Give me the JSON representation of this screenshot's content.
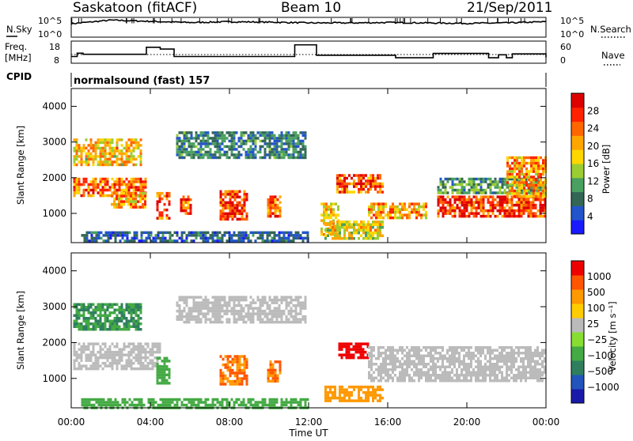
{
  "header": {
    "station": "Saskatoon (fitACF)",
    "beam": "Beam 10",
    "date": "21/Sep/2011"
  },
  "labels": {
    "nsky": "N.Sky",
    "freq_line1": "Freq.",
    "freq_line2": "[MHz]",
    "cpid": "CPID",
    "nsearch": "N.Search",
    "nave": "Nave",
    "cpid_value": "normalsound (fast) 157",
    "xlabel": "Time UT"
  },
  "colors": {
    "power_scale": [
      "#1a1aff",
      "#2255cc",
      "#336655",
      "#4aa060",
      "#9acd32",
      "#ffd700",
      "#ffa500",
      "#ff6600",
      "#ff2200",
      "#dd0000"
    ],
    "velocity_scale": [
      "#1a1aaa",
      "#2255bb",
      "#2f7f5f",
      "#44aa44",
      "#88dd33",
      "#bbbbbb",
      "#ffcc00",
      "#ff9900",
      "#ff5500",
      "#ee0000"
    ]
  },
  "chart_data": [
    {
      "type": "line",
      "title": "N.Sky / N.Search",
      "left_ticks": [
        "10^5",
        "10^0"
      ],
      "right_ticks": [
        "10^5",
        "10^0"
      ],
      "x": [
        "00:00",
        "02:00",
        "04:00",
        "06:00",
        "08:00",
        "10:00",
        "12:00",
        "14:00",
        "16:00",
        "18:00",
        "20:00",
        "22:00",
        "00:00"
      ],
      "series": [
        {
          "values": [
            3.4,
            4.3,
            4.0,
            3.7,
            3.9,
            3.8,
            3.6,
            3.6,
            3.7,
            3.6,
            3.5,
            3.6,
            3.9
          ]
        }
      ]
    },
    {
      "type": "line",
      "left_ticks": [
        "18",
        "8"
      ],
      "right_ticks": [
        "60",
        "0"
      ],
      "xlim": [
        "00:00",
        "24:00"
      ],
      "series": [
        {
          "values_hours": [
            0,
            0.3,
            0.6,
            3.6,
            3.8,
            4.5,
            5.2,
            11.1,
            11.3,
            12.4,
            14.3,
            16.4,
            16.8,
            17.8,
            18.3,
            21.1,
            21.6,
            22.0,
            22.3,
            24.0
          ],
          "values_mhz": [
            10.5,
            12.4,
            11.8,
            11.8,
            15.8,
            14.8,
            10.5,
            10.5,
            17.2,
            11.2,
            11.2,
            9.8,
            9.8,
            9.8,
            12.3,
            9.8,
            11.5,
            9.8,
            12.0,
            10.0
          ]
        }
      ]
    },
    {
      "type": "heatmap",
      "title": "Power",
      "ylabel": "Slant Range [km]",
      "colorbar_label": "Power [dB]",
      "colorbar_ticks": [
        "28",
        "24",
        "20",
        "16",
        "12",
        "8",
        "4"
      ],
      "y_ticks": [
        "4000",
        "3000",
        "2000",
        "1000"
      ],
      "x_ticks": [
        "00:00",
        "04:00",
        "08:00",
        "12:00",
        "16:00",
        "20:00",
        "00:00"
      ],
      "xlim_hours": [
        0,
        24
      ],
      "ylim_km": [
        180,
        4500
      ],
      "regions": [
        {
          "t0": 0.1,
          "t1": 3.5,
          "r0": 2400,
          "r1": 3100,
          "v": 18
        },
        {
          "t0": 0.1,
          "t1": 3.8,
          "r0": 1500,
          "r1": 2000,
          "v": 22
        },
        {
          "t0": 2.0,
          "t1": 3.7,
          "r0": 1200,
          "r1": 1600,
          "v": 20
        },
        {
          "t0": 4.3,
          "t1": 5.0,
          "r0": 900,
          "r1": 1600,
          "v": 24
        },
        {
          "t0": 5.5,
          "t1": 6.0,
          "r0": 1000,
          "r1": 1500,
          "v": 24
        },
        {
          "t0": 5.3,
          "t1": 11.8,
          "r0": 2600,
          "r1": 3300,
          "v": 8
        },
        {
          "t0": 7.5,
          "t1": 8.9,
          "r0": 850,
          "r1": 1650,
          "v": 26
        },
        {
          "t0": 9.9,
          "t1": 10.6,
          "r0": 950,
          "r1": 1500,
          "v": 24
        },
        {
          "t0": 12.6,
          "t1": 13.5,
          "r0": 400,
          "r1": 1300,
          "v": 18
        },
        {
          "t0": 13.4,
          "t1": 15.7,
          "r0": 1600,
          "r1": 2100,
          "v": 24
        },
        {
          "t0": 12.8,
          "t1": 15.7,
          "r0": 300,
          "r1": 800,
          "v": 16
        },
        {
          "t0": 15.0,
          "t1": 18.0,
          "r0": 900,
          "r1": 1300,
          "v": 20
        },
        {
          "t0": 18.5,
          "t1": 24.0,
          "r0": 900,
          "r1": 1500,
          "v": 26
        },
        {
          "t0": 18.5,
          "t1": 24.0,
          "r0": 1600,
          "r1": 2000,
          "v": 10
        },
        {
          "t0": 22.0,
          "t1": 24.0,
          "r0": 1500,
          "r1": 2600,
          "v": 20
        },
        {
          "t0": 0.5,
          "t1": 12.0,
          "r0": 200,
          "r1": 500,
          "v": 6
        }
      ]
    },
    {
      "type": "heatmap",
      "title": "Velocity",
      "ylabel": "Slant Range [km]",
      "colorbar_label": "Velocity [m s⁻¹]",
      "colorbar_ticks": [
        "1000",
        "500",
        "100",
        "25",
        "−25",
        "−100",
        "−500",
        "−1000"
      ],
      "y_ticks": [
        "4000",
        "3000",
        "2000",
        "1000"
      ],
      "x_ticks": [
        "00:00",
        "04:00",
        "08:00",
        "12:00",
        "16:00",
        "20:00",
        "00:00"
      ],
      "xlim_hours": [
        0,
        24
      ],
      "ylim_km": [
        180,
        4500
      ],
      "regions": [
        {
          "t0": 0.1,
          "t1": 3.5,
          "r0": 2400,
          "r1": 3100,
          "v": 300
        },
        {
          "t0": 0.1,
          "t1": 4.5,
          "r0": 1300,
          "r1": 2000,
          "v": 0
        },
        {
          "t0": 4.3,
          "t1": 5.0,
          "r0": 900,
          "r1": 1600,
          "v": 150
        },
        {
          "t0": 5.3,
          "t1": 11.8,
          "r0": 2600,
          "r1": 3300,
          "v": 0
        },
        {
          "t0": 7.5,
          "t1": 8.9,
          "r0": 850,
          "r1": 1650,
          "v": -300
        },
        {
          "t0": 9.9,
          "t1": 10.6,
          "r0": 950,
          "r1": 1500,
          "v": -300
        },
        {
          "t0": 13.5,
          "t1": 15.0,
          "r0": 1600,
          "r1": 2000,
          "v": -700
        },
        {
          "t0": 15.0,
          "t1": 24.0,
          "r0": 900,
          "r1": 1900,
          "v": 0
        },
        {
          "t0": 12.8,
          "t1": 15.7,
          "r0": 400,
          "r1": 800,
          "v": -200
        },
        {
          "t0": 0.5,
          "t1": 12.0,
          "r0": 200,
          "r1": 450,
          "v": 150
        }
      ]
    }
  ]
}
